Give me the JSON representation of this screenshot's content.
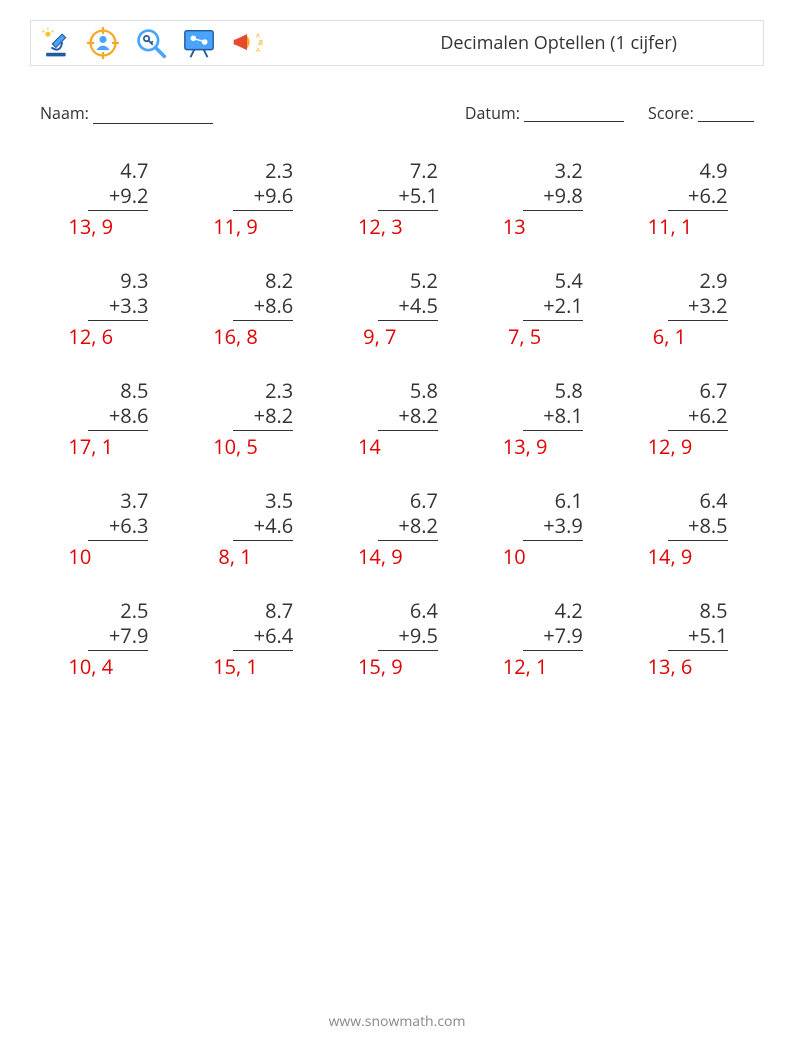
{
  "header": {
    "title": "Decimalen Optellen (1 cijfer)"
  },
  "info": {
    "name_label": "Naam:",
    "date_label": "Datum:",
    "score_label": "Score:"
  },
  "style": {
    "answer_color": "#e20000",
    "text_color": "#333333",
    "border_color": "#e0e0e0",
    "rows": 5,
    "cols": 5,
    "header_fontsize": 18,
    "info_fontsize": 16,
    "problem_fontsize": 20,
    "footer_fontsize": 14
  },
  "footer": {
    "text": "www.snowmath.com"
  },
  "operator": "+",
  "problems": [
    {
      "a": "4.7",
      "b": "9.2",
      "ans": "13, 9"
    },
    {
      "a": "2.3",
      "b": "9.6",
      "ans": "11, 9"
    },
    {
      "a": "7.2",
      "b": "5.1",
      "ans": "12, 3"
    },
    {
      "a": "3.2",
      "b": "9.8",
      "ans": "13"
    },
    {
      "a": "4.9",
      "b": "6.2",
      "ans": "11, 1"
    },
    {
      "a": "9.3",
      "b": "3.3",
      "ans": "12, 6"
    },
    {
      "a": "8.2",
      "b": "8.6",
      "ans": "16, 8"
    },
    {
      "a": "5.2",
      "b": "4.5",
      "ans": " 9, 7"
    },
    {
      "a": "5.4",
      "b": "2.1",
      "ans": " 7, 5"
    },
    {
      "a": "2.9",
      "b": "3.2",
      "ans": " 6, 1"
    },
    {
      "a": "8.5",
      "b": "8.6",
      "ans": "17, 1"
    },
    {
      "a": "2.3",
      "b": "8.2",
      "ans": "10, 5"
    },
    {
      "a": "5.8",
      "b": "8.2",
      "ans": "14"
    },
    {
      "a": "5.8",
      "b": "8.1",
      "ans": "13, 9"
    },
    {
      "a": "6.7",
      "b": "6.2",
      "ans": "12, 9"
    },
    {
      "a": "3.7",
      "b": "6.3",
      "ans": "10"
    },
    {
      "a": "3.5",
      "b": "4.6",
      "ans": " 8, 1"
    },
    {
      "a": "6.7",
      "b": "8.2",
      "ans": "14, 9"
    },
    {
      "a": "6.1",
      "b": "3.9",
      "ans": "10"
    },
    {
      "a": "6.4",
      "b": "8.5",
      "ans": "14, 9"
    },
    {
      "a": "2.5",
      "b": "7.9",
      "ans": "10, 4"
    },
    {
      "a": "8.7",
      "b": "6.4",
      "ans": "15, 1"
    },
    {
      "a": "6.4",
      "b": "9.5",
      "ans": "15, 9"
    },
    {
      "a": "4.2",
      "b": "7.9",
      "ans": "12, 1"
    },
    {
      "a": "8.5",
      "b": "5.1",
      "ans": "13, 6"
    }
  ]
}
